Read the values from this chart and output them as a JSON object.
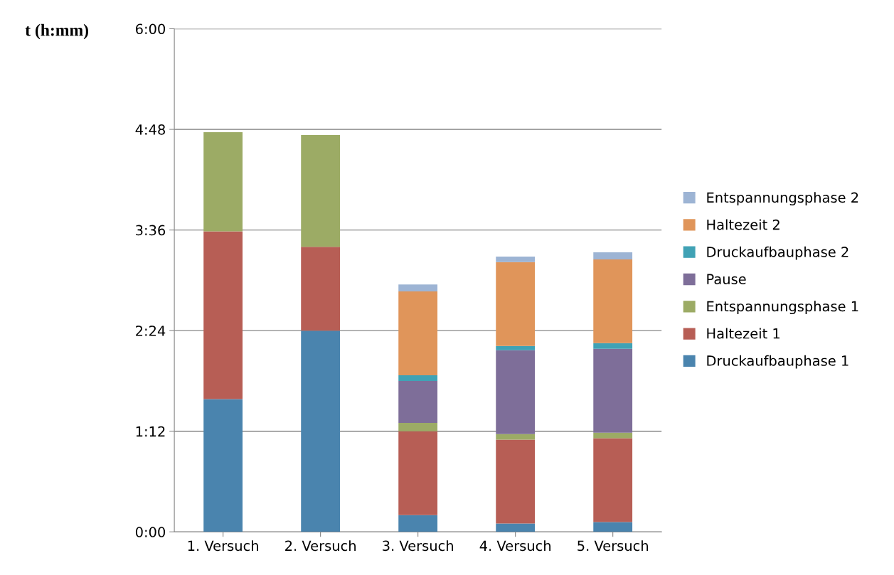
{
  "chart_data": {
    "type": "bar",
    "stacked": true,
    "ylabel": "t (h:mm)",
    "categories": [
      "1. Versuch",
      "2. Versuch",
      "3. Versuch",
      "4. Versuch",
      "5. Versuch"
    ],
    "series": [
      {
        "name": "Druckaufbauphase 1",
        "color": "#4a84ae",
        "values": [
          95,
          144,
          12,
          6,
          7
        ]
      },
      {
        "name": "Haltezeit 1",
        "color": "#b75e55",
        "values": [
          120,
          60,
          60,
          60,
          60
        ]
      },
      {
        "name": "Entspannungsphase 1",
        "color": "#9cab65",
        "values": [
          71,
          80,
          6,
          4,
          4
        ]
      },
      {
        "name": "Pause",
        "color": "#7e6e99",
        "values": [
          null,
          null,
          30,
          60,
          60
        ]
      },
      {
        "name": "Druckaufbauphase 2",
        "color": "#40a2b5",
        "values": [
          null,
          null,
          4,
          3,
          4
        ]
      },
      {
        "name": "Haltezeit 2",
        "color": "#e0955a",
        "values": [
          null,
          null,
          60,
          60,
          60
        ]
      },
      {
        "name": "Entspannungsphase 2",
        "color": "#9db4d4",
        "values": [
          null,
          null,
          5,
          4,
          5
        ]
      }
    ],
    "ylim": [
      0,
      360
    ],
    "yticks": [
      {
        "value": 0,
        "label": "0:00"
      },
      {
        "value": 72,
        "label": "1:12"
      },
      {
        "value": 144,
        "label": "2:24"
      },
      {
        "value": 216,
        "label": "3:36"
      },
      {
        "value": 288,
        "label": "4:48"
      },
      {
        "value": 360,
        "label": "6:00"
      }
    ],
    "grid": "y",
    "legend": "right"
  }
}
